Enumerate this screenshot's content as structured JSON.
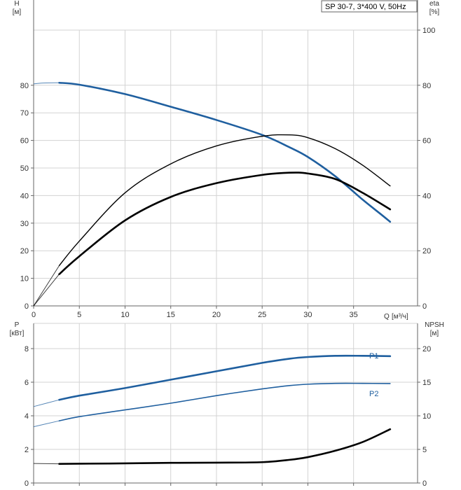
{
  "colors": {
    "blue": "#1f5f9f",
    "black": "#000000",
    "grid": "#d3d3d3",
    "axis": "#666666"
  },
  "chart_data": [
    {
      "type": "line",
      "panel": "head_efficiency",
      "title": "SP 30-7, 3*400 V, 50Hz",
      "ylabel": "H",
      "yunit": "[м]",
      "y2label": "eta",
      "y2unit": "[%]",
      "xlabel": "Q",
      "xunit": "[м³/ч]",
      "xlim": [
        0,
        42
      ],
      "ylim": [
        0,
        100
      ],
      "y2lim": [
        0,
        100
      ],
      "xticks": [
        0,
        5,
        10,
        15,
        20,
        25,
        30,
        35
      ],
      "yticks": [
        0,
        10,
        20,
        30,
        40,
        50,
        60,
        70,
        80
      ],
      "y2ticks": [
        0,
        20,
        40,
        60,
        80,
        100
      ],
      "grid": true,
      "series": [
        {
          "role": "head",
          "axis": "left",
          "color": "#1f5f9f",
          "extrapolated": [
            [
              0,
              80.5
            ],
            [
              1,
              80.8
            ],
            [
              2.8,
              80.9
            ]
          ],
          "points": [
            [
              2.8,
              80.9
            ],
            [
              5,
              80.2
            ],
            [
              10,
              76.8
            ],
            [
              15,
              72.2
            ],
            [
              20,
              67.4
            ],
            [
              25,
              62.0
            ],
            [
              28,
              57.5
            ],
            [
              30,
              54.0
            ],
            [
              33,
              47.0
            ],
            [
              36,
              38.5
            ],
            [
              38,
              33.2
            ],
            [
              39,
              30.5
            ]
          ]
        },
        {
          "role": "efficiency",
          "axis": "right",
          "color": "#000000",
          "extrapolated": [
            [
              0,
              0
            ],
            [
              2.8,
              14.6
            ]
          ],
          "points": [
            [
              2.8,
              14.6
            ],
            [
              5,
              23.5
            ],
            [
              10,
              41.0
            ],
            [
              15,
              51.5
            ],
            [
              20,
              58.0
            ],
            [
              25,
              61.5
            ],
            [
              28,
              62.0
            ],
            [
              30,
              61.0
            ],
            [
              33,
              57.0
            ],
            [
              36,
              51.0
            ],
            [
              39,
              43.5
            ]
          ]
        },
        {
          "role": "pump_efficiency",
          "axis": "right",
          "color": "#000000",
          "extrapolated": [
            [
              0,
              0
            ],
            [
              2.8,
              11.5
            ]
          ],
          "points": [
            [
              2.8,
              11.5
            ],
            [
              5,
              18.0
            ],
            [
              10,
              31.0
            ],
            [
              15,
              39.5
            ],
            [
              20,
              44.5
            ],
            [
              25,
              47.5
            ],
            [
              28,
              48.3
            ],
            [
              30,
              48.0
            ],
            [
              33,
              46.0
            ],
            [
              36,
              41.0
            ],
            [
              39,
              35.0
            ]
          ]
        }
      ]
    },
    {
      "type": "line",
      "panel": "power_npsh",
      "ylabel": "P",
      "yunit": "[кВт]",
      "y2label": "NPSH",
      "y2unit": "[м]",
      "xlim": [
        0,
        42
      ],
      "ylim": [
        0,
        9.5
      ],
      "y2lim": [
        0,
        23.75
      ],
      "yticks": [
        0,
        2,
        4,
        6,
        8
      ],
      "y2ticks": [
        0,
        5,
        10,
        15,
        20
      ],
      "grid": true,
      "series": [
        {
          "name": "P1",
          "axis": "left",
          "color": "#1f5f9f",
          "extrapolated": [
            [
              0,
              4.55
            ],
            [
              2.8,
              4.95
            ]
          ],
          "points": [
            [
              2.8,
              4.95
            ],
            [
              5,
              5.2
            ],
            [
              10,
              5.65
            ],
            [
              15,
              6.15
            ],
            [
              20,
              6.65
            ],
            [
              25,
              7.15
            ],
            [
              28,
              7.4
            ],
            [
              30,
              7.5
            ],
            [
              33,
              7.57
            ],
            [
              36,
              7.57
            ],
            [
              39,
              7.55
            ]
          ]
        },
        {
          "name": "P2",
          "axis": "left",
          "color": "#1f5f9f",
          "extrapolated": [
            [
              0,
              3.35
            ],
            [
              2.8,
              3.7
            ]
          ],
          "points": [
            [
              2.8,
              3.7
            ],
            [
              5,
              3.95
            ],
            [
              10,
              4.35
            ],
            [
              15,
              4.75
            ],
            [
              20,
              5.2
            ],
            [
              25,
              5.6
            ],
            [
              28,
              5.8
            ],
            [
              30,
              5.88
            ],
            [
              33,
              5.93
            ],
            [
              36,
              5.93
            ],
            [
              39,
              5.92
            ]
          ]
        },
        {
          "role": "npsh",
          "axis": "right",
          "color": "#000000",
          "extrapolated": [
            [
              0,
              2.9
            ],
            [
              2.8,
              2.85
            ]
          ],
          "points": [
            [
              2.8,
              2.85
            ],
            [
              5,
              2.87
            ],
            [
              10,
              2.92
            ],
            [
              15,
              3.0
            ],
            [
              20,
              3.03
            ],
            [
              25,
              3.1
            ],
            [
              28,
              3.45
            ],
            [
              30,
              3.85
            ],
            [
              33,
              4.8
            ],
            [
              36,
              6.1
            ],
            [
              39,
              8.0
            ]
          ]
        }
      ]
    }
  ]
}
